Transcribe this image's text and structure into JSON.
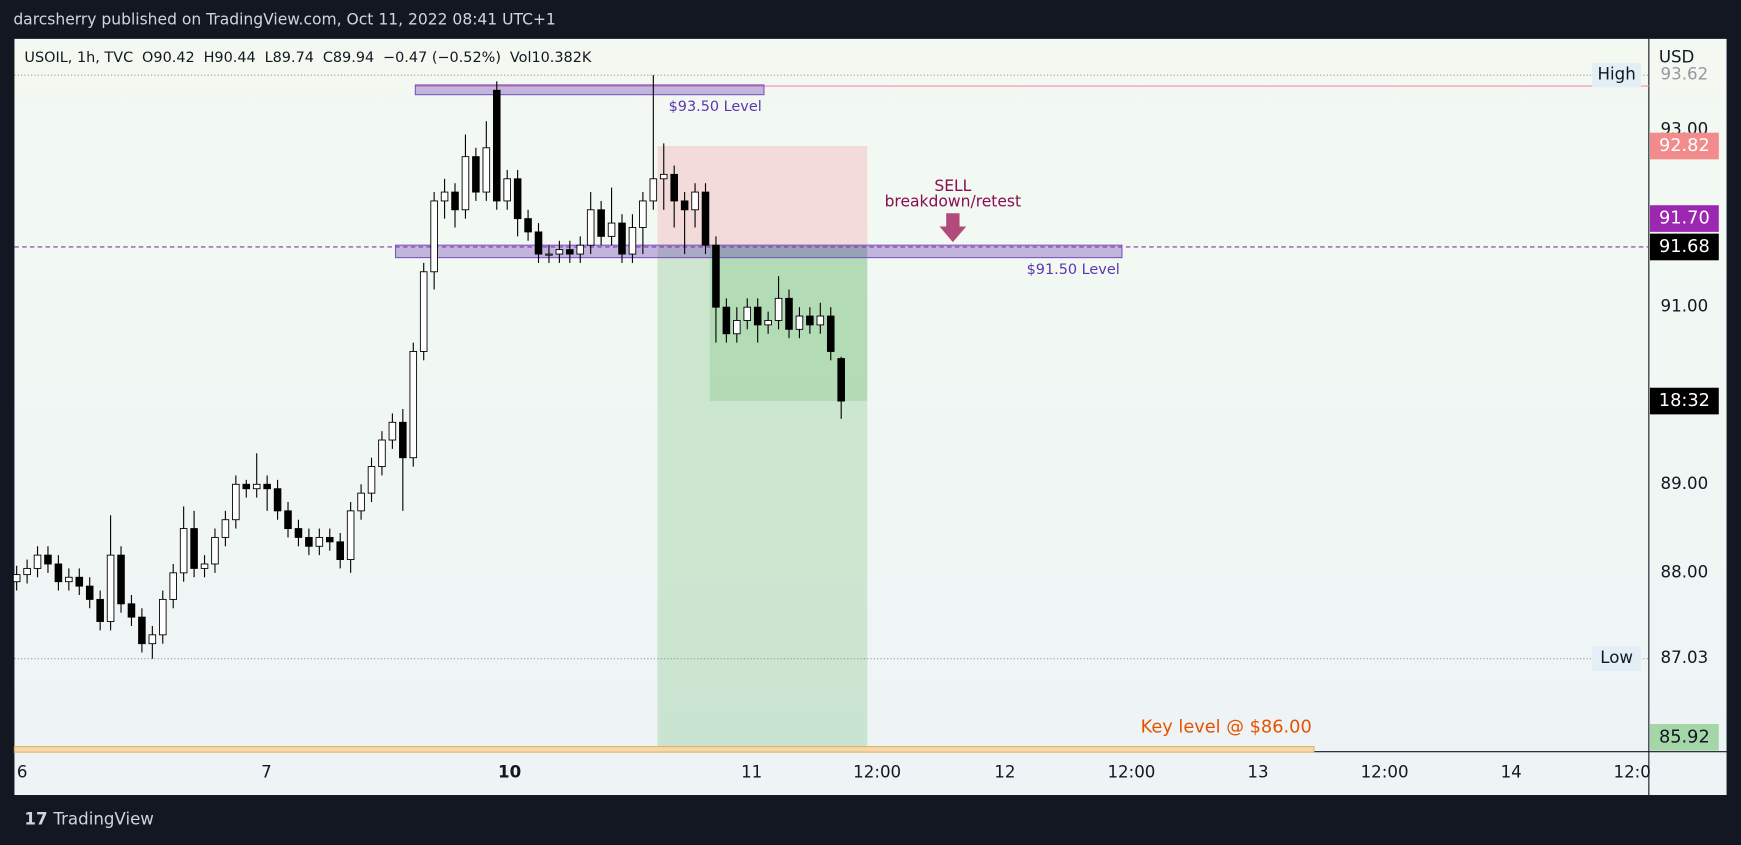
{
  "header": {
    "title": "darcsherry published on TradingView.com, Oct 11, 2022 08:41 UTC+1"
  },
  "footer": {
    "brand": "TradingView"
  },
  "chart_data": {
    "type": "candlestick",
    "legend": {
      "symbol": "USOIL, 1h, TVC",
      "open": "O90.42",
      "high": "H90.44",
      "low": "L89.74",
      "close": "C89.94",
      "change": "−0.47 (−0.52%)",
      "volume": "Vol10.382K"
    },
    "currency": "USD",
    "time_labels": [
      "6",
      "7",
      "10",
      "11",
      "12:00",
      "12",
      "12:00",
      "13",
      "12:00",
      "14",
      "12:0"
    ],
    "open": [
      87.9,
      87.98,
      88.05,
      88.2,
      88.1,
      87.9,
      87.95,
      87.85,
      87.7,
      87.45,
      88.2,
      87.65,
      87.5,
      87.2,
      87.3,
      87.7,
      88.0,
      88.5,
      88.05,
      88.1,
      88.4,
      88.6,
      89.0,
      88.95,
      89.0,
      88.95,
      88.7,
      88.5,
      88.4,
      88.3,
      88.4,
      88.35,
      88.15,
      88.7,
      88.9,
      89.2,
      89.5,
      89.7,
      89.3,
      90.5,
      91.4,
      92.2,
      92.3,
      92.1,
      92.7,
      92.3,
      93.45,
      92.2,
      92.45,
      92.0,
      91.85,
      91.6,
      91.6,
      91.65,
      91.6,
      91.7,
      92.1,
      91.8,
      91.95,
      91.6,
      91.9,
      92.2,
      92.45,
      92.5,
      92.2,
      92.1,
      92.3,
      91.7,
      91.0,
      90.7,
      90.85,
      91.0,
      90.8,
      90.85,
      91.1,
      90.75,
      90.9,
      90.8,
      90.9,
      90.42
    ],
    "high": [
      88.08,
      88.15,
      88.3,
      88.3,
      88.2,
      88.05,
      88.05,
      87.95,
      87.8,
      88.65,
      88.3,
      87.75,
      87.6,
      87.4,
      87.8,
      88.1,
      88.75,
      88.7,
      88.2,
      88.5,
      88.7,
      89.1,
      89.05,
      89.35,
      89.1,
      89.05,
      88.8,
      88.6,
      88.5,
      88.5,
      88.5,
      88.45,
      88.8,
      89.0,
      89.3,
      89.6,
      89.8,
      89.85,
      90.6,
      91.5,
      92.3,
      92.45,
      92.4,
      92.95,
      92.8,
      93.1,
      93.55,
      92.55,
      92.55,
      92.1,
      91.95,
      91.7,
      91.75,
      91.75,
      91.8,
      92.3,
      92.2,
      92.35,
      92.05,
      92.05,
      92.3,
      93.62,
      92.85,
      92.6,
      92.3,
      92.4,
      92.4,
      91.8,
      91.1,
      91.0,
      91.1,
      91.1,
      90.95,
      91.35,
      91.2,
      91.0,
      91.0,
      91.05,
      91.0,
      90.44
    ],
    "low": [
      87.8,
      87.88,
      87.95,
      88.0,
      87.8,
      87.8,
      87.75,
      87.6,
      87.35,
      87.35,
      87.55,
      87.4,
      87.1,
      87.03,
      87.2,
      87.6,
      87.9,
      87.95,
      87.95,
      88.0,
      88.3,
      88.5,
      88.85,
      88.85,
      88.7,
      88.6,
      88.4,
      88.3,
      88.2,
      88.2,
      88.25,
      88.05,
      88.0,
      88.6,
      88.8,
      89.1,
      89.4,
      88.7,
      89.2,
      90.4,
      91.2,
      92.0,
      91.9,
      92.0,
      92.2,
      92.2,
      92.1,
      92.1,
      91.8,
      91.75,
      91.5,
      91.5,
      91.5,
      91.5,
      91.5,
      91.6,
      91.7,
      91.7,
      91.5,
      91.5,
      91.6,
      92.1,
      92.1,
      91.9,
      91.6,
      91.9,
      91.6,
      90.6,
      90.6,
      90.6,
      90.75,
      90.6,
      90.7,
      90.75,
      90.65,
      90.65,
      90.7,
      90.7,
      90.4,
      89.74
    ],
    "close": [
      87.98,
      88.05,
      88.2,
      88.1,
      87.9,
      87.95,
      87.85,
      87.7,
      87.45,
      88.2,
      87.65,
      87.5,
      87.2,
      87.3,
      87.7,
      88.0,
      88.5,
      88.05,
      88.1,
      88.4,
      88.6,
      89.0,
      88.95,
      89.0,
      88.95,
      88.7,
      88.5,
      88.4,
      88.3,
      88.4,
      88.35,
      88.15,
      88.7,
      88.9,
      89.2,
      89.5,
      89.7,
      89.3,
      90.5,
      91.4,
      92.2,
      92.3,
      92.1,
      92.7,
      92.3,
      92.8,
      92.2,
      92.45,
      92.0,
      91.85,
      91.6,
      91.6,
      91.65,
      91.6,
      91.7,
      92.1,
      91.8,
      91.95,
      91.6,
      91.9,
      92.2,
      92.45,
      92.5,
      92.2,
      92.1,
      92.3,
      91.7,
      91.0,
      90.7,
      90.85,
      91.0,
      90.8,
      90.85,
      91.1,
      90.75,
      90.9,
      90.8,
      90.9,
      90.5,
      89.94
    ],
    "ylim": [
      85.98,
      94.03
    ],
    "yticks": [
      {
        "value": 93,
        "label": "93.00"
      },
      {
        "value": 91,
        "label": "91.00"
      },
      {
        "value": 89,
        "label": "89.00"
      },
      {
        "value": 88,
        "label": "88.00"
      }
    ],
    "high_mark": {
      "label": "High",
      "value": 93.62
    },
    "low_mark": {
      "label": "Low",
      "value": 87.03
    },
    "price_badges": [
      {
        "value": 92.82,
        "color": "#f28b8b"
      },
      {
        "value": 91.7,
        "label": "91.70",
        "color": "#9c27b0"
      },
      {
        "value": 91.68,
        "label": "91.68",
        "color": "#000000"
      },
      {
        "value": 89.94,
        "label": "18:32",
        "color": "#000000"
      },
      {
        "value": 85.92,
        "color": "#a5d6a7"
      }
    ],
    "zones": [
      {
        "label": "$93.50 Level",
        "top": 93.51,
        "bottom": 93.4,
        "start": 38.2,
        "end": 71.6
      },
      {
        "label": "$91.50 Level",
        "top": 91.7,
        "bottom": 91.56,
        "start": 36.3,
        "end": 105.9
      }
    ],
    "position": {
      "start": 61.4,
      "end": 81.5,
      "stop": 92.82,
      "entry": 91.7,
      "target": 85.98,
      "filled_start": 66.4,
      "last": 89.94
    },
    "key_level": {
      "label": "Key level @ $86.00",
      "value": 86.0,
      "end": 124.3
    },
    "annotation": {
      "lines": [
        "SELL",
        "breakdown/retest"
      ],
      "at": 89.7
    }
  }
}
